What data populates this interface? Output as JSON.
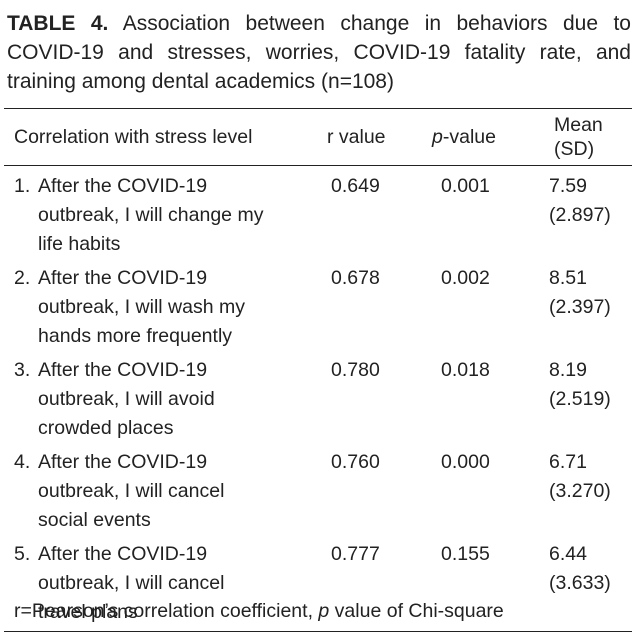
{
  "caption": {
    "label": "TABLE 4.",
    "text": " Association between change in behaviors due to COVID-19 and stresses, worries, COVID-19 fatality rate, and training among dental academics (n=108)"
  },
  "table": {
    "headers": {
      "label": "Correlation with stress level",
      "r": "r value",
      "p_italic": "p",
      "p_rest": "-value",
      "mean": "Mean (SD)"
    },
    "rows": [
      {
        "num": "1.",
        "text": "After the COVID-19 outbreak, I will change my life habits",
        "r": "0.649",
        "p": "0.001",
        "mean": "7.59 (2.897)"
      },
      {
        "num": "2.",
        "text": "After the COVID-19 outbreak, I will wash my hands more frequently",
        "r": "0.678",
        "p": "0.002",
        "mean": "8.51 (2.397)"
      },
      {
        "num": "3.",
        "text": "After the COVID-19 outbreak, I will avoid crowded places",
        "r": "0.780",
        "p": "0.018",
        "mean": "8.19 (2.519)"
      },
      {
        "num": "4.",
        "text": "After the COVID-19 outbreak, I will cancel social events",
        "r": "0.760",
        "p": "0.000",
        "mean": "6.71 (3.270)"
      },
      {
        "num": "5.",
        "text": "After the COVID-19 outbreak, I will cancel travel plans",
        "r": "0.777",
        "p": "0.155",
        "mean": "6.44 (3.633)"
      }
    ]
  },
  "footnote": {
    "part1": "r=Pearson’s correlation coefficient, ",
    "italic": "p",
    "part2": " value of Chi-square"
  }
}
